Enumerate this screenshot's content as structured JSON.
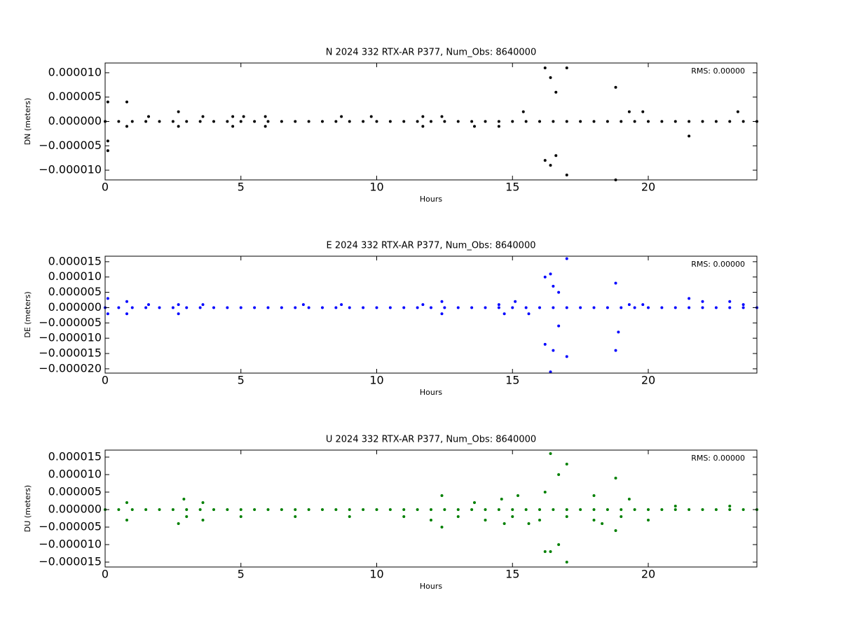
{
  "chart_data": [
    {
      "type": "scatter",
      "title": "N 2024 332 RTX-AR  P377, Num_Obs: 8640000",
      "xlabel": "Hours",
      "ylabel": "DN (meters)",
      "annotation": "RMS:  0.00000",
      "annotation_color": "#0000ff",
      "color": "#000000",
      "xlim": [
        0,
        24
      ],
      "xticks": [
        0,
        5,
        10,
        15,
        20
      ],
      "ylim": [
        -1.2e-05,
        1.2e-05
      ],
      "yticks": [
        {
          "value": -1e-05,
          "label": "−0.000010"
        },
        {
          "value": -5e-06,
          "label": "−0.000005"
        },
        {
          "value": 0,
          "label": "0.000000"
        },
        {
          "value": 5e-06,
          "label": "0.000005"
        },
        {
          "value": 1e-05,
          "label": "0.000010"
        }
      ],
      "x": [
        0,
        0.5,
        1,
        1.5,
        2,
        2.5,
        3,
        3.5,
        4,
        4.5,
        5,
        5.5,
        6,
        6.5,
        7,
        7.5,
        8,
        8.5,
        9,
        9.5,
        10,
        10.5,
        11,
        11.5,
        12,
        12.5,
        13,
        13.5,
        14,
        14.5,
        15,
        15.5,
        16,
        16.5,
        17,
        17.5,
        18,
        18.5,
        19,
        19.5,
        20,
        20.5,
        21,
        21.5,
        22,
        22.5,
        23,
        23.5,
        24,
        0.1,
        0.1,
        0.1,
        0.8,
        0.8,
        1.6,
        2.7,
        2.7,
        3.6,
        4.7,
        4.7,
        5.1,
        5.9,
        5.9,
        8.7,
        9.8,
        11.7,
        11.7,
        12.4,
        13.6,
        14.5,
        15.4,
        16.2,
        16.2,
        16.4,
        16.4,
        16.6,
        16.6,
        17,
        17,
        18.8,
        18.8,
        19.3,
        19.8,
        21.5,
        23.3
      ],
      "values": [
        0,
        0,
        0,
        0,
        0,
        0,
        0,
        0,
        0,
        0,
        0,
        0,
        0,
        0,
        0,
        0,
        0,
        0,
        0,
        0,
        0,
        0,
        0,
        0,
        0,
        0,
        0,
        0,
        0,
        0,
        0,
        0,
        0,
        0,
        0,
        0,
        0,
        0,
        0,
        0,
        0,
        0,
        0,
        0,
        0,
        0,
        0,
        0,
        0,
        4e-06,
        -6e-06,
        -4e-06,
        4e-06,
        -1e-06,
        1e-06,
        2e-06,
        -1e-06,
        1e-06,
        1e-06,
        -1e-06,
        1e-06,
        1e-06,
        -1e-06,
        1e-06,
        1e-06,
        1e-06,
        -1e-06,
        1e-06,
        -1e-06,
        -1e-06,
        2e-06,
        1.1e-05,
        -8e-06,
        9e-06,
        -9e-06,
        6e-06,
        -7e-06,
        1.1e-05,
        -1.1e-05,
        7e-06,
        -1.2e-05,
        2e-06,
        2e-06,
        -3e-06,
        2e-06
      ]
    },
    {
      "type": "scatter",
      "title": "E 2024 332 RTX-AR  P377, Num_Obs: 8640000",
      "xlabel": "Hours",
      "ylabel": "DE (meters)",
      "annotation": "RMS:  0.00000",
      "annotation_color": "#0000ff",
      "color": "#0000ff",
      "xlim": [
        0,
        24
      ],
      "xticks": [
        0,
        5,
        10,
        15,
        20
      ],
      "ylim": [
        -2.14e-05,
        1.68e-05
      ],
      "yticks": [
        {
          "value": -2e-05,
          "label": "−0.000020"
        },
        {
          "value": -1.5e-05,
          "label": "−0.000015"
        },
        {
          "value": -1e-05,
          "label": "−0.000010"
        },
        {
          "value": -5e-06,
          "label": "−0.000005"
        },
        {
          "value": 0,
          "label": "0.000000"
        },
        {
          "value": 5e-06,
          "label": "0.000005"
        },
        {
          "value": 1e-05,
          "label": "0.000010"
        },
        {
          "value": 1.5e-05,
          "label": "0.000015"
        }
      ],
      "x": [
        0,
        0.5,
        1,
        1.5,
        2,
        2.5,
        3,
        3.5,
        4,
        4.5,
        5,
        5.5,
        6,
        6.5,
        7,
        7.5,
        8,
        8.5,
        9,
        9.5,
        10,
        10.5,
        11,
        11.5,
        12,
        12.5,
        13,
        13.5,
        14,
        14.5,
        15,
        15.5,
        16,
        16.5,
        17,
        17.5,
        18,
        18.5,
        19,
        19.5,
        20,
        20.5,
        21,
        21.5,
        22,
        22.5,
        23,
        23.5,
        24,
        0.1,
        0.1,
        0.8,
        0.8,
        1.6,
        2.7,
        2.7,
        3.6,
        7.3,
        8.7,
        11.7,
        12.4,
        12.4,
        14.5,
        14.7,
        15.1,
        15.6,
        16.2,
        16.2,
        16.4,
        16.4,
        16.5,
        16.5,
        16.7,
        16.7,
        17,
        17,
        18.8,
        18.8,
        18.9,
        19.3,
        19.8,
        21.5,
        22,
        23,
        23.5
      ],
      "values": [
        0,
        0,
        0,
        0,
        0,
        0,
        0,
        0,
        0,
        0,
        0,
        0,
        0,
        0,
        0,
        0,
        0,
        0,
        0,
        0,
        0,
        0,
        0,
        0,
        0,
        0,
        0,
        0,
        0,
        0,
        0,
        0,
        0,
        0,
        0,
        0,
        0,
        0,
        0,
        0,
        0,
        0,
        0,
        0,
        0,
        0,
        0,
        0,
        0,
        3e-06,
        -2e-06,
        2e-06,
        -2e-06,
        1e-06,
        1e-06,
        -2e-06,
        1e-06,
        1e-06,
        1e-06,
        1e-06,
        2e-06,
        -2e-06,
        1e-06,
        -2e-06,
        2e-06,
        -2e-06,
        1e-05,
        -1.2e-05,
        1.1e-05,
        -2.1e-05,
        7e-06,
        -1.4e-05,
        5e-06,
        -6e-06,
        1.6e-05,
        -1.6e-05,
        8e-06,
        -1.4e-05,
        -8e-06,
        1e-06,
        1e-06,
        3e-06,
        2e-06,
        2e-06,
        1e-06
      ]
    },
    {
      "type": "scatter",
      "title": "U 2024 332 RTX-AR  P377, Num_Obs: 8640000",
      "xlabel": "Hours",
      "ylabel": "DU (meters)",
      "annotation": "RMS:  0.00000",
      "annotation_color": "#0000ff",
      "color": "#008000",
      "xlim": [
        0,
        24
      ],
      "xticks": [
        0,
        5,
        10,
        15,
        20
      ],
      "ylim": [
        -1.64e-05,
        1.7e-05
      ],
      "yticks": [
        {
          "value": -1.5e-05,
          "label": "−0.000015"
        },
        {
          "value": -1e-05,
          "label": "−0.000010"
        },
        {
          "value": -5e-06,
          "label": "−0.000005"
        },
        {
          "value": 0,
          "label": "0.000000"
        },
        {
          "value": 5e-06,
          "label": "0.000005"
        },
        {
          "value": 1e-05,
          "label": "0.000010"
        },
        {
          "value": 1.5e-05,
          "label": "0.000015"
        }
      ],
      "x": [
        0,
        0.5,
        1,
        1.5,
        2,
        2.5,
        3,
        3.5,
        4,
        4.5,
        5,
        5.5,
        6,
        6.5,
        7,
        7.5,
        8,
        8.5,
        9,
        9.5,
        10,
        10.5,
        11,
        11.5,
        12,
        12.5,
        13,
        13.5,
        14,
        14.5,
        15,
        15.5,
        16,
        16.5,
        17,
        17.5,
        18,
        18.5,
        19,
        19.5,
        20,
        20.5,
        21,
        21.5,
        22,
        22.5,
        23,
        23.5,
        24,
        3,
        5,
        7,
        9,
        11,
        13,
        15,
        17,
        19,
        12,
        14,
        16,
        18,
        20,
        0.8,
        0.8,
        2.7,
        2.9,
        3.6,
        3.6,
        12.4,
        12.4,
        13.6,
        14.6,
        14.7,
        15.2,
        15.6,
        16.2,
        16.2,
        16.4,
        16.4,
        16.7,
        16.7,
        17,
        17,
        18,
        18.3,
        18.8,
        18.8,
        19.3,
        21,
        23
      ],
      "values": [
        0,
        0,
        0,
        0,
        0,
        0,
        0,
        0,
        0,
        0,
        0,
        0,
        0,
        0,
        0,
        0,
        0,
        0,
        0,
        0,
        0,
        0,
        0,
        0,
        0,
        0,
        0,
        0,
        0,
        0,
        0,
        0,
        0,
        0,
        0,
        0,
        0,
        0,
        0,
        0,
        0,
        0,
        0,
        0,
        0,
        0,
        0,
        0,
        0,
        -2e-06,
        -2e-06,
        -2e-06,
        -2e-06,
        -2e-06,
        -2e-06,
        -2e-06,
        -2e-06,
        -2e-06,
        -3e-06,
        -3e-06,
        -3e-06,
        -3e-06,
        -3e-06,
        2e-06,
        -3e-06,
        -4e-06,
        3e-06,
        2e-06,
        -3e-06,
        4e-06,
        -5e-06,
        2e-06,
        3e-06,
        -4e-06,
        4e-06,
        -4e-06,
        5e-06,
        -1.2e-05,
        1.6e-05,
        -1.2e-05,
        1e-05,
        -1e-05,
        1.3e-05,
        -1.5e-05,
        4e-06,
        -4e-06,
        9e-06,
        -6e-06,
        3e-06,
        1e-06,
        1e-06
      ]
    }
  ]
}
